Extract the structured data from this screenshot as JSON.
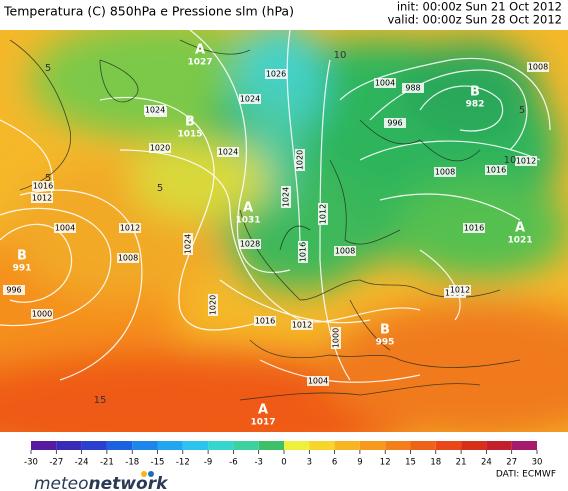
{
  "header": {
    "title": "Temperatura (C) 850hPa e Pressione slm (hPa)",
    "init": "init: 00:00z Sun 21 Oct 2012",
    "valid": "valid: 00:00z Sun 28 Oct 2012"
  },
  "centers": [
    {
      "letter": "A",
      "value": "1027"
    },
    {
      "letter": "B",
      "value": "1015"
    },
    {
      "letter": "B",
      "value": "982"
    },
    {
      "letter": "A",
      "value": "1031"
    },
    {
      "letter": "B",
      "value": "991"
    },
    {
      "letter": "A",
      "value": "1021"
    },
    {
      "letter": "B",
      "value": "995"
    },
    {
      "letter": "A",
      "value": "1017"
    }
  ],
  "isobar_labels": [
    "1026",
    "1024",
    "1024",
    "1020",
    "1024",
    "1016",
    "1012",
    "1004",
    "1012",
    "1008",
    "996",
    "1000",
    "1024",
    "1020",
    "1028",
    "1024",
    "1020",
    "1016",
    "1012",
    "1016",
    "1008",
    "1004",
    "1000",
    "996",
    "988",
    "1004",
    "1008",
    "1012",
    "1016",
    "1000",
    "1012",
    "1008",
    "1016",
    "1024",
    "1012"
  ],
  "temperature_labels": [
    "5",
    "5",
    "5",
    "10",
    "10",
    "15",
    "5"
  ],
  "colorbar": {
    "ticks": [
      -30,
      -27,
      -24,
      -21,
      -18,
      -15,
      -12,
      -9,
      -6,
      -3,
      0,
      3,
      6,
      9,
      12,
      15,
      18,
      21,
      24,
      27,
      30
    ]
  },
  "source": "DATI: ECMWF",
  "logo": {
    "left": "meteo",
    "right": "network"
  }
}
